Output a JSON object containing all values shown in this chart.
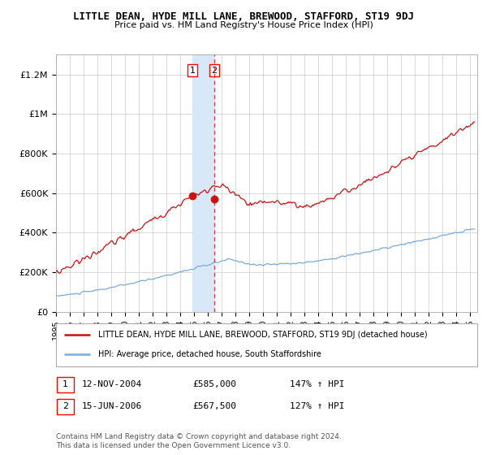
{
  "title": "LITTLE DEAN, HYDE MILL LANE, BREWOOD, STAFFORD, ST19 9DJ",
  "subtitle": "Price paid vs. HM Land Registry's House Price Index (HPI)",
  "ylabel_ticks": [
    "£0",
    "£200K",
    "£400K",
    "£600K",
    "£800K",
    "£1M",
    "£1.2M"
  ],
  "ytick_values": [
    0,
    200000,
    400000,
    600000,
    800000,
    1000000,
    1200000
  ],
  "ylim": [
    0,
    1300000
  ],
  "xlim_start": 1995.0,
  "xlim_end": 2025.5,
  "hpi_color": "#7aaadd",
  "price_color": "#cc1111",
  "transaction1_date": 2004.87,
  "transaction1_price": 585000,
  "transaction2_date": 2006.46,
  "transaction2_price": 567500,
  "legend_line1": "LITTLE DEAN, HYDE MILL LANE, BREWOOD, STAFFORD, ST19 9DJ (detached house)",
  "legend_line2": "HPI: Average price, detached house, South Staffordshire",
  "annotation1_label": "1",
  "annotation1_date": "12-NOV-2004",
  "annotation1_price": "£585,000",
  "annotation1_hpi": "147% ↑ HPI",
  "annotation2_label": "2",
  "annotation2_date": "15-JUN-2006",
  "annotation2_price": "£567,500",
  "annotation2_hpi": "127% ↑ HPI",
  "footer": "Contains HM Land Registry data © Crown copyright and database right 2024.\nThis data is licensed under the Open Government Licence v3.0.",
  "background_color": "#ffffff",
  "shaded_region_color": "#d8e8f8"
}
